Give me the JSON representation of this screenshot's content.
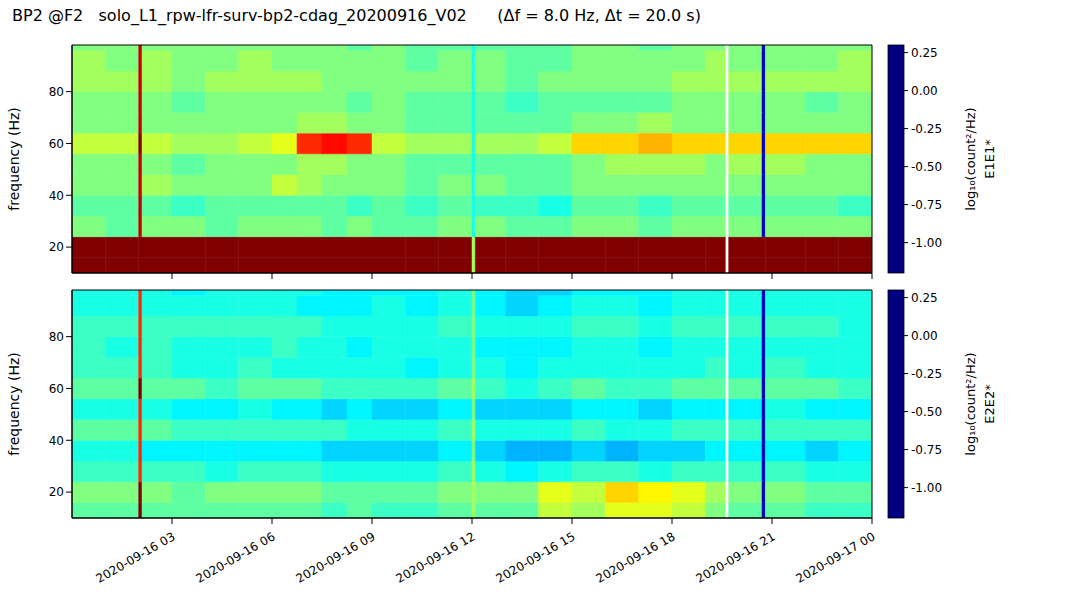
{
  "chart_data": [
    {
      "type": "heatmap",
      "title": "BP2 @F2   solo_L1_rpw-lfr-surv-bp2-cdag_20200916_V02      (Δf = 8.0 Hz, Δt = 20.0 s)",
      "y_label": "frequency (Hz)",
      "tick_labels": "y",
      "xlim": [
        0,
        24
      ],
      "xticks": [
        {
          "value": 3,
          "label": "2020-09-16 03"
        },
        {
          "value": 6,
          "label": "2020-09-16 06"
        },
        {
          "value": 9,
          "label": "2020-09-16 09"
        },
        {
          "value": 12,
          "label": "2020-09-16 12"
        },
        {
          "value": 15,
          "label": "2020-09-16 15"
        },
        {
          "value": 18,
          "label": "2020-09-16 18"
        },
        {
          "value": 21,
          "label": "2020-09-16 21"
        },
        {
          "value": 24,
          "label": "2020-09-17 00"
        }
      ],
      "ylim": [
        10,
        98
      ],
      "yticks": [
        20,
        40,
        60,
        80
      ],
      "time_edges": [
        0,
        1,
        2,
        2.1,
        3,
        4,
        5,
        6,
        6.75,
        7.5,
        8.25,
        9,
        10,
        11,
        12,
        12.1,
        13,
        14,
        15,
        16,
        17,
        18,
        19,
        19.6,
        19.7,
        20.7,
        20.8,
        22,
        23,
        24
      ],
      "frequency_edges": [
        8,
        16,
        24,
        32,
        40,
        48,
        56,
        64,
        72,
        80,
        88,
        96,
        104
      ],
      "cells": [
        [
          0.3,
          0.3,
          0.3,
          0.3,
          0.3,
          0.3,
          0.3,
          0.3,
          0.3,
          0.3,
          0.3,
          0.3,
          0.3,
          0.3,
          -0.4,
          0.3,
          0.3,
          0.3,
          0.3,
          0.3,
          0.3,
          0.3,
          0.3,
          null,
          0.3,
          0.3,
          0.3,
          0.3,
          0.3
        ],
        [
          0.3,
          0.3,
          0.3,
          0.3,
          0.3,
          0.3,
          0.3,
          0.3,
          0.3,
          0.3,
          0.3,
          0.3,
          0.3,
          0.3,
          -0.4,
          0.3,
          0.3,
          0.3,
          0.3,
          0.3,
          0.3,
          0.3,
          0.3,
          null,
          0.3,
          0.3,
          0.3,
          0.3,
          0.3
        ],
        [
          -0.45,
          -0.5,
          0.2,
          -0.45,
          -0.45,
          -0.5,
          -0.45,
          -0.45,
          -0.45,
          -0.5,
          -0.45,
          -0.5,
          -0.5,
          -0.45,
          -0.6,
          -0.45,
          -0.5,
          -0.5,
          -0.45,
          -0.45,
          -0.5,
          -0.45,
          -0.45,
          null,
          -0.45,
          -1.1,
          -0.45,
          -0.45,
          -0.45
        ],
        [
          -0.5,
          -0.5,
          0.2,
          -0.5,
          -0.55,
          -0.5,
          -0.5,
          -0.5,
          -0.5,
          -0.5,
          -0.55,
          -0.5,
          -0.55,
          -0.5,
          -0.6,
          -0.55,
          -0.55,
          -0.6,
          -0.5,
          -0.5,
          -0.55,
          -0.5,
          -0.5,
          null,
          -0.5,
          -1.1,
          -0.5,
          -0.5,
          -0.55
        ],
        [
          -0.45,
          -0.45,
          0.2,
          -0.4,
          -0.45,
          -0.45,
          -0.45,
          -0.35,
          -0.4,
          -0.45,
          -0.45,
          -0.45,
          -0.5,
          -0.45,
          -0.6,
          -0.45,
          -0.5,
          -0.5,
          -0.45,
          -0.45,
          -0.45,
          -0.45,
          -0.45,
          null,
          -0.45,
          -1.1,
          -0.45,
          -0.45,
          -0.45
        ],
        [
          -0.45,
          -0.45,
          0.2,
          -0.45,
          -0.5,
          -0.45,
          -0.45,
          -0.45,
          -0.4,
          -0.4,
          -0.45,
          -0.45,
          -0.5,
          -0.5,
          -0.6,
          -0.5,
          -0.5,
          -0.5,
          -0.45,
          -0.4,
          -0.4,
          -0.4,
          -0.45,
          null,
          -0.4,
          -1.1,
          -0.4,
          -0.45,
          -0.45
        ],
        [
          -0.35,
          -0.35,
          0.3,
          -0.35,
          -0.4,
          -0.4,
          -0.35,
          -0.3,
          0.05,
          0.1,
          0.05,
          -0.35,
          -0.4,
          -0.4,
          -0.6,
          -0.4,
          -0.4,
          -0.35,
          -0.2,
          -0.2,
          -0.15,
          -0.2,
          -0.2,
          null,
          -0.2,
          -1.1,
          -0.2,
          -0.2,
          -0.2
        ],
        [
          -0.45,
          -0.45,
          0.2,
          -0.45,
          -0.45,
          -0.45,
          -0.45,
          -0.45,
          -0.4,
          -0.4,
          -0.45,
          -0.45,
          -0.5,
          -0.5,
          -0.6,
          -0.5,
          -0.5,
          -0.5,
          -0.45,
          -0.45,
          -0.4,
          -0.45,
          -0.45,
          null,
          -0.45,
          -1.1,
          -0.45,
          -0.45,
          -0.45
        ],
        [
          -0.45,
          -0.45,
          0.2,
          -0.45,
          -0.5,
          -0.45,
          -0.45,
          -0.45,
          -0.45,
          -0.45,
          -0.5,
          -0.45,
          -0.5,
          -0.5,
          -0.6,
          -0.5,
          -0.55,
          -0.5,
          -0.5,
          -0.5,
          -0.5,
          -0.45,
          -0.45,
          null,
          -0.45,
          -1.1,
          -0.45,
          -0.5,
          -0.45
        ],
        [
          -0.4,
          -0.4,
          0.2,
          -0.4,
          -0.45,
          -0.4,
          -0.4,
          -0.4,
          -0.4,
          -0.45,
          -0.45,
          -0.45,
          -0.45,
          -0.45,
          -0.6,
          -0.45,
          -0.5,
          -0.45,
          -0.45,
          -0.45,
          -0.45,
          -0.4,
          -0.4,
          null,
          -0.4,
          -1.1,
          -0.4,
          -0.4,
          -0.4
        ],
        [
          -0.4,
          -0.45,
          0.2,
          -0.4,
          -0.45,
          -0.45,
          -0.4,
          -0.45,
          -0.45,
          -0.45,
          -0.45,
          -0.45,
          -0.5,
          -0.45,
          -0.6,
          -0.45,
          -0.5,
          -0.5,
          -0.45,
          -0.45,
          -0.45,
          -0.45,
          -0.4,
          null,
          -0.45,
          -1.1,
          -0.45,
          -0.45,
          -0.4
        ],
        [
          -0.45,
          -0.45,
          0.2,
          -0.45,
          -0.45,
          -0.45,
          -0.45,
          -0.45,
          -0.45,
          -0.45,
          -0.5,
          -0.45,
          -0.5,
          -0.5,
          -0.6,
          -0.5,
          -0.5,
          -0.5,
          -0.45,
          -0.45,
          -0.5,
          -0.45,
          -0.45,
          null,
          -0.45,
          -1.1,
          -0.45,
          -0.45,
          -0.45
        ]
      ],
      "colorbar": {
        "range": [
          -1.2,
          0.3
        ],
        "ticks": [
          {
            "value": -1,
            "label": "-1.00"
          },
          {
            "value": -0.75,
            "label": "-0.75"
          },
          {
            "value": -0.5,
            "label": "-0.50"
          },
          {
            "value": -0.25,
            "label": "-0.25"
          },
          {
            "value": 0,
            "label": "0.00"
          },
          {
            "value": 0.25,
            "label": "0.25"
          }
        ],
        "label": "log₁₀(count²/Hz)",
        "title": "E1E1*"
      }
    },
    {
      "type": "heatmap",
      "y_label": "frequency (Hz)",
      "xlim": [
        0,
        24
      ],
      "xticks": [
        {
          "value": 3,
          "label": "2020-09-16 03"
        },
        {
          "value": 6,
          "label": "2020-09-16 06"
        },
        {
          "value": 9,
          "label": "2020-09-16 09"
        },
        {
          "value": 12,
          "label": "2020-09-16 12"
        },
        {
          "value": 15,
          "label": "2020-09-16 15"
        },
        {
          "value": 18,
          "label": "2020-09-16 18"
        },
        {
          "value": 21,
          "label": "2020-09-16 21"
        },
        {
          "value": 24,
          "label": "2020-09-17 00"
        }
      ],
      "ylim": [
        10,
        98
      ],
      "yticks": [
        20,
        40,
        60,
        80
      ],
      "time_edges": [
        0,
        1,
        2,
        2.1,
        3,
        4,
        5,
        6,
        6.75,
        7.5,
        8.25,
        9,
        10,
        11,
        12,
        12.1,
        13,
        14,
        15,
        16,
        17,
        18,
        19,
        19.6,
        19.7,
        20.7,
        20.8,
        22,
        23,
        24
      ],
      "frequency_edges": [
        8,
        16,
        24,
        32,
        40,
        48,
        56,
        64,
        72,
        80,
        88,
        96,
        104
      ],
      "cells": [
        [
          -0.5,
          -0.5,
          0.3,
          -0.5,
          -0.5,
          -0.5,
          -0.5,
          -0.5,
          -0.5,
          -0.55,
          -0.5,
          -0.55,
          -0.55,
          -0.5,
          -0.4,
          -0.5,
          -0.5,
          -0.35,
          -0.4,
          -0.3,
          -0.3,
          -0.35,
          -0.45,
          null,
          -0.5,
          -1.1,
          -0.5,
          -0.55,
          -0.55
        ],
        [
          -0.45,
          -0.45,
          0.3,
          -0.45,
          -0.5,
          -0.45,
          -0.45,
          -0.45,
          -0.45,
          -0.5,
          -0.5,
          -0.5,
          -0.5,
          -0.45,
          -0.4,
          -0.45,
          -0.45,
          -0.3,
          -0.35,
          -0.2,
          -0.25,
          -0.3,
          -0.4,
          null,
          -0.45,
          -1.1,
          -0.45,
          -0.5,
          -0.5
        ],
        [
          -0.55,
          -0.55,
          0.05,
          -0.55,
          -0.55,
          -0.6,
          -0.55,
          -0.55,
          -0.55,
          -0.6,
          -0.6,
          -0.6,
          -0.6,
          -0.55,
          -0.4,
          -0.6,
          -0.65,
          -0.6,
          -0.55,
          -0.55,
          -0.6,
          -0.55,
          -0.55,
          null,
          -0.55,
          -1.1,
          -0.55,
          -0.6,
          -0.6
        ],
        [
          -0.6,
          -0.6,
          0.05,
          -0.65,
          -0.65,
          -0.65,
          -0.65,
          -0.65,
          -0.65,
          -0.7,
          -0.7,
          -0.7,
          -0.7,
          -0.65,
          -0.45,
          -0.7,
          -0.75,
          -0.75,
          -0.7,
          -0.75,
          -0.7,
          -0.7,
          -0.65,
          null,
          -0.65,
          -1.1,
          -0.65,
          -0.7,
          -0.65
        ],
        [
          -0.5,
          -0.5,
          0.05,
          -0.5,
          -0.55,
          -0.55,
          -0.55,
          -0.55,
          -0.55,
          -0.55,
          -0.6,
          -0.6,
          -0.6,
          -0.55,
          -0.4,
          -0.6,
          -0.6,
          -0.6,
          -0.55,
          -0.6,
          -0.6,
          -0.55,
          -0.55,
          null,
          -0.55,
          -1.1,
          -0.55,
          -0.55,
          -0.55
        ],
        [
          -0.6,
          -0.6,
          0.05,
          -0.6,
          -0.65,
          -0.65,
          -0.6,
          -0.65,
          -0.65,
          -0.7,
          -0.65,
          -0.7,
          -0.7,
          -0.65,
          -0.45,
          -0.7,
          -0.7,
          -0.7,
          -0.65,
          -0.65,
          -0.7,
          -0.65,
          -0.65,
          null,
          -0.65,
          -1.1,
          -0.6,
          -0.65,
          -0.65
        ],
        [
          -0.5,
          -0.5,
          0.3,
          -0.5,
          -0.5,
          -0.55,
          -0.5,
          -0.5,
          -0.5,
          -0.55,
          -0.55,
          -0.55,
          -0.55,
          -0.5,
          -0.4,
          -0.55,
          -0.6,
          -0.55,
          -0.5,
          -0.55,
          -0.55,
          -0.5,
          -0.5,
          null,
          -0.5,
          -1.1,
          -0.5,
          -0.5,
          -0.55
        ],
        [
          -0.55,
          -0.55,
          0.05,
          -0.55,
          -0.6,
          -0.6,
          -0.55,
          -0.6,
          -0.6,
          -0.6,
          -0.6,
          -0.6,
          -0.65,
          -0.6,
          -0.45,
          -0.6,
          -0.65,
          -0.6,
          -0.6,
          -0.6,
          -0.6,
          -0.6,
          -0.55,
          null,
          -0.6,
          -1.1,
          -0.55,
          -0.6,
          -0.6
        ],
        [
          -0.55,
          -0.6,
          0.05,
          -0.55,
          -0.6,
          -0.6,
          -0.6,
          -0.55,
          -0.6,
          -0.6,
          -0.65,
          -0.6,
          -0.6,
          -0.6,
          -0.45,
          -0.65,
          -0.65,
          -0.65,
          -0.6,
          -0.6,
          -0.65,
          -0.6,
          -0.6,
          null,
          -0.6,
          -1.1,
          -0.6,
          -0.6,
          -0.6
        ],
        [
          -0.55,
          -0.55,
          0.05,
          -0.55,
          -0.55,
          -0.55,
          -0.55,
          -0.55,
          -0.55,
          -0.6,
          -0.6,
          -0.6,
          -0.6,
          -0.55,
          -0.45,
          -0.6,
          -0.6,
          -0.6,
          -0.55,
          -0.55,
          -0.6,
          -0.55,
          -0.55,
          null,
          -0.55,
          -1.1,
          -0.55,
          -0.55,
          -0.6
        ],
        [
          -0.6,
          -0.6,
          0.05,
          -0.6,
          -0.6,
          -0.6,
          -0.6,
          -0.6,
          -0.65,
          -0.65,
          -0.65,
          -0.6,
          -0.65,
          -0.6,
          -0.45,
          -0.65,
          -0.7,
          -0.65,
          -0.6,
          -0.6,
          -0.65,
          -0.6,
          -0.6,
          null,
          -0.6,
          -1.1,
          -0.6,
          -0.6,
          -0.6
        ],
        [
          -0.6,
          -0.6,
          0.05,
          -0.6,
          -0.65,
          -0.6,
          -0.6,
          -0.6,
          -0.6,
          -0.65,
          -0.65,
          -0.65,
          -0.65,
          -0.6,
          -0.45,
          -0.65,
          -0.7,
          -0.7,
          -0.65,
          -0.65,
          -0.65,
          -0.6,
          -0.6,
          null,
          -0.6,
          -1.1,
          -0.6,
          -0.6,
          -0.6
        ]
      ],
      "colorbar": {
        "range": [
          -1.2,
          0.3
        ],
        "ticks": [
          {
            "value": -1,
            "label": "-1.00"
          },
          {
            "value": -0.75,
            "label": "-0.75"
          },
          {
            "value": -0.5,
            "label": "-0.50"
          },
          {
            "value": -0.25,
            "label": "-0.25"
          },
          {
            "value": 0,
            "label": "0.00"
          },
          {
            "value": 0.25,
            "label": "0.25"
          }
        ],
        "label": "log₁₀(count²/Hz)",
        "title": "E2E2*"
      }
    }
  ]
}
